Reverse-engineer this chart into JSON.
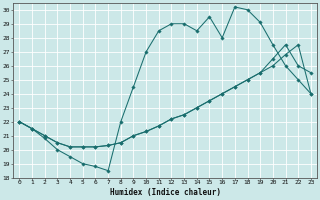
{
  "xlabel": "Humidex (Indice chaleur)",
  "bg_color": "#cce8e8",
  "grid_color": "#ffffff",
  "line_color": "#1a6e6e",
  "xlim": [
    -0.5,
    23.5
  ],
  "ylim": [
    18,
    30.5
  ],
  "xticks": [
    0,
    1,
    2,
    3,
    4,
    5,
    6,
    7,
    8,
    9,
    10,
    11,
    12,
    13,
    14,
    15,
    16,
    17,
    18,
    19,
    20,
    21,
    22,
    23
  ],
  "yticks": [
    18,
    19,
    20,
    21,
    22,
    23,
    24,
    25,
    26,
    27,
    28,
    29,
    30
  ],
  "line1_x": [
    0,
    1,
    2,
    3,
    4,
    5,
    6,
    7,
    8,
    9,
    10,
    11,
    12,
    13,
    14,
    15,
    16,
    17,
    18,
    19,
    20,
    21,
    22,
    23
  ],
  "line1_y": [
    22,
    21.5,
    20.8,
    20,
    19.5,
    19,
    18.8,
    18.5,
    22,
    24.5,
    27,
    28.5,
    29,
    29,
    28.5,
    29.5,
    28,
    30.2,
    30,
    29.1,
    27.5,
    26,
    25,
    24
  ],
  "line2_x": [
    0,
    1,
    2,
    3,
    4,
    5,
    6,
    7,
    8,
    9,
    10,
    11,
    12,
    13,
    14,
    15,
    16,
    17,
    18,
    19,
    20,
    21,
    22,
    23
  ],
  "line2_y": [
    22,
    21.5,
    21,
    20.5,
    20.2,
    20.2,
    20.2,
    20.3,
    20.5,
    21,
    21.3,
    21.7,
    22.2,
    22.5,
    23,
    23.5,
    24,
    24.5,
    25,
    25.5,
    26,
    26.8,
    27.5,
    24
  ],
  "line3_x": [
    0,
    1,
    2,
    3,
    4,
    5,
    6,
    7,
    8,
    9,
    10,
    11,
    12,
    13,
    14,
    15,
    16,
    17,
    18,
    19,
    20,
    21,
    22,
    23
  ],
  "line3_y": [
    22,
    21.5,
    21,
    20.5,
    20.2,
    20.2,
    20.2,
    20.3,
    20.5,
    21,
    21.3,
    21.7,
    22.2,
    22.5,
    23,
    23.5,
    24,
    24.5,
    25,
    25.5,
    26.5,
    27.5,
    26,
    25.5
  ]
}
